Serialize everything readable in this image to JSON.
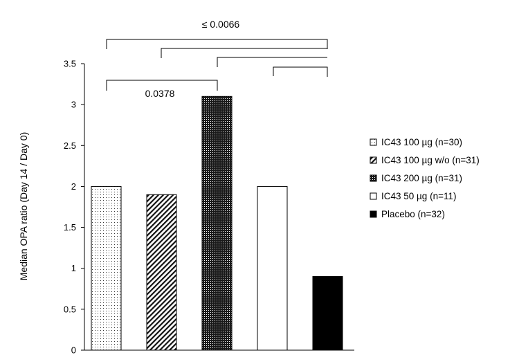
{
  "chart_data": {
    "type": "bar",
    "title": "",
    "xlabel": "",
    "ylabel": "Median OPA ratio (Day 14 / Day 0)",
    "ylim": [
      0,
      3.5
    ],
    "yticks": [
      "0",
      "0.5",
      "1",
      "1.5",
      "2",
      "2.5",
      "3",
      "3.5"
    ],
    "grid": false,
    "legend_position": "right",
    "series": [
      {
        "name": "IC43 100 µg (n=30)",
        "value": 2.0,
        "pattern": "dotted"
      },
      {
        "name": "IC43 100 µg w/o (n=31)",
        "value": 1.9,
        "pattern": "diagonal-hatch"
      },
      {
        "name": "IC43 200 µg (n=31)",
        "value": 3.1,
        "pattern": "dense-checker"
      },
      {
        "name": "IC43 50 µg (n=11)",
        "value": 2.0,
        "pattern": "white"
      },
      {
        "name": "Placebo (n=32)",
        "value": 0.9,
        "pattern": "black"
      }
    ],
    "annotations": [
      {
        "text": "≤ 0.0066",
        "comparison": "bars 1–4 vs Placebo"
      },
      {
        "text": "0.0378",
        "comparison": "IC43 100 µg vs IC43 200 µg"
      }
    ],
    "colors": {
      "axis": "#000000",
      "black_bar": "#000000",
      "white_bar": "#ffffff"
    }
  }
}
